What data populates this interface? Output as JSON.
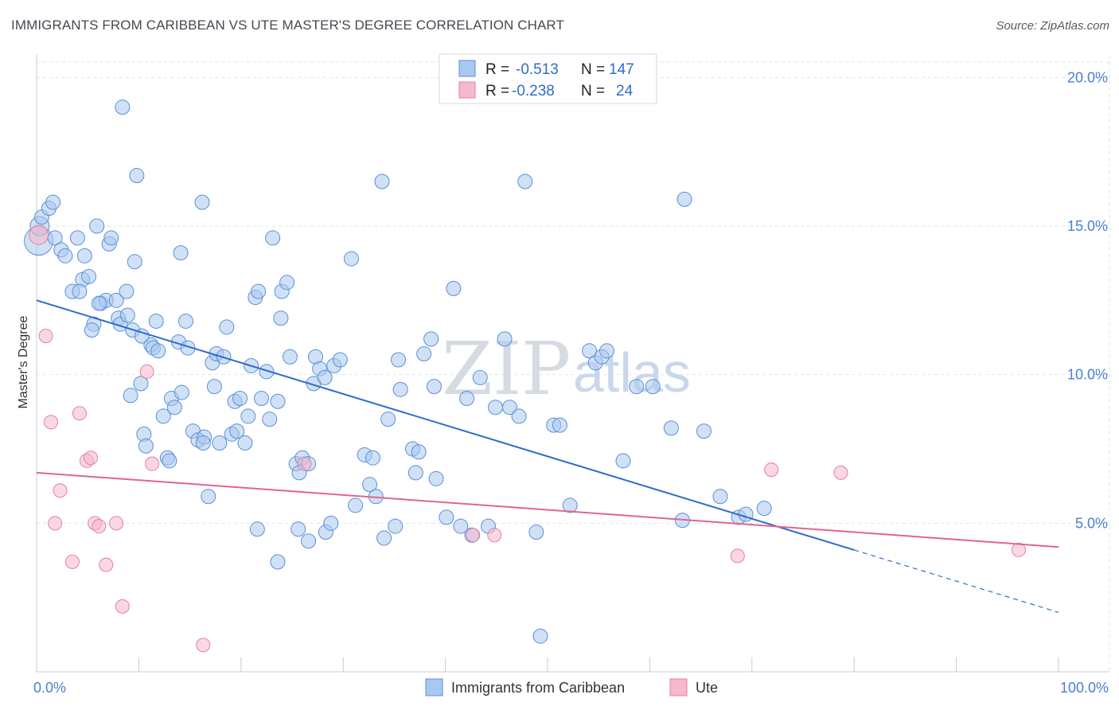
{
  "title": "IMMIGRANTS FROM CARIBBEAN VS UTE MASTER'S DEGREE CORRELATION CHART",
  "source": "Source: ZipAtlas.com",
  "watermark": {
    "zip": "ZIP",
    "atlas": "atlas"
  },
  "legend": {
    "row1": {
      "r_label": "R =",
      "r_value": "-0.513",
      "n_label": "N =",
      "n_value": "147"
    },
    "row2": {
      "r_label": "R =",
      "r_value": "-0.238",
      "n_label": "N =",
      "n_value": "24"
    }
  },
  "colors": {
    "blue_fill": "#a9c8ef",
    "blue_stroke": "#5a8fd8",
    "blue_line": "#2f6cc9",
    "pink_fill": "#f6b8cb",
    "pink_stroke": "#e57fa1",
    "pink_line": "#e0658f",
    "grid": "#dfe3ea",
    "tick_text": "#4a7fd1"
  },
  "chart_data": {
    "type": "scatter",
    "xlabel": "",
    "ylabel": "Master's Degree",
    "xlim": [
      0,
      100
    ],
    "ylim": [
      0,
      21
    ],
    "x_tick_labels": [
      {
        "value": 0,
        "label": "0.0%"
      },
      {
        "value": 100,
        "label": "100.0%"
      }
    ],
    "y_ticks": [
      {
        "value": 5,
        "label": "5.0%"
      },
      {
        "value": 10,
        "label": "10.0%"
      },
      {
        "value": 15,
        "label": "15.0%"
      },
      {
        "value": 20,
        "label": "20.0%"
      }
    ],
    "x_minor_ticks": [
      0,
      10,
      20,
      30,
      40,
      50,
      60,
      70,
      80,
      90,
      100
    ],
    "grid": true,
    "legend_position": "top-center",
    "series": [
      {
        "name": "Immigrants from Caribbean",
        "color": "#a9c8ef",
        "points": [
          [
            0.2,
            14.5
          ],
          [
            0.3,
            15
          ],
          [
            0.5,
            15.3
          ],
          [
            1.2,
            15.6
          ],
          [
            1.6,
            15.8
          ],
          [
            1.8,
            14.6
          ],
          [
            2.4,
            14.2
          ],
          [
            2.8,
            14
          ],
          [
            3.5,
            12.8
          ],
          [
            4,
            14.6
          ],
          [
            4.5,
            13.2
          ],
          [
            4.2,
            12.8
          ],
          [
            4.7,
            14
          ],
          [
            5.1,
            13.3
          ],
          [
            5.6,
            11.7
          ],
          [
            5.4,
            11.5
          ],
          [
            5.9,
            15
          ],
          [
            6.3,
            12.4
          ],
          [
            6.8,
            12.5
          ],
          [
            7.1,
            14.4
          ],
          [
            7.3,
            14.6
          ],
          [
            7.8,
            12.5
          ],
          [
            8,
            11.9
          ],
          [
            8.2,
            11.7
          ],
          [
            8.9,
            12
          ],
          [
            9.4,
            11.5
          ],
          [
            8.8,
            12.8
          ],
          [
            8.4,
            19
          ],
          [
            9.8,
            16.7
          ],
          [
            9.6,
            13.8
          ],
          [
            10.2,
            9.7
          ],
          [
            9.2,
            9.3
          ],
          [
            10.5,
            8
          ],
          [
            10.7,
            7.6
          ],
          [
            11.2,
            11
          ],
          [
            11.7,
            11.8
          ],
          [
            11.4,
            10.9
          ],
          [
            11.9,
            10.8
          ],
          [
            12.4,
            8.6
          ],
          [
            12.8,
            7.2
          ],
          [
            13,
            7.1
          ],
          [
            13.2,
            9.2
          ],
          [
            13.5,
            8.9
          ],
          [
            13.9,
            11.1
          ],
          [
            14.2,
            9.4
          ],
          [
            14.6,
            11.8
          ],
          [
            14.8,
            10.9
          ],
          [
            14.1,
            14.1
          ],
          [
            15.3,
            8.1
          ],
          [
            15.8,
            7.8
          ],
          [
            16.4,
            7.9
          ],
          [
            16.2,
            15.8
          ],
          [
            16.8,
            5.9
          ],
          [
            17.2,
            10.4
          ],
          [
            17.6,
            10.7
          ],
          [
            17.4,
            9.6
          ],
          [
            17.9,
            7.7
          ],
          [
            18.3,
            10.6
          ],
          [
            18.6,
            11.6
          ],
          [
            19.1,
            8
          ],
          [
            19.4,
            9.1
          ],
          [
            19.6,
            8.1
          ],
          [
            19.9,
            9.2
          ],
          [
            20.4,
            7.7
          ],
          [
            20.7,
            8.6
          ],
          [
            21,
            10.3
          ],
          [
            21.4,
            12.6
          ],
          [
            21.7,
            12.8
          ],
          [
            22,
            9.2
          ],
          [
            22.8,
            8.5
          ],
          [
            22.5,
            10.1
          ],
          [
            23.1,
            14.6
          ],
          [
            23.6,
            9.1
          ],
          [
            23.9,
            11.9
          ],
          [
            24,
            12.8
          ],
          [
            24.5,
            13.1
          ],
          [
            24.8,
            10.6
          ],
          [
            25.4,
            7
          ],
          [
            25.7,
            6.7
          ],
          [
            26,
            7.2
          ],
          [
            26.6,
            7
          ],
          [
            27.1,
            9.7
          ],
          [
            27.3,
            10.6
          ],
          [
            27.7,
            10.2
          ],
          [
            28.2,
            9.9
          ],
          [
            29.1,
            10.3
          ],
          [
            29.7,
            10.5
          ],
          [
            30.8,
            13.9
          ],
          [
            31.2,
            5.6
          ],
          [
            32.1,
            7.3
          ],
          [
            32.6,
            6.3
          ],
          [
            32.9,
            7.2
          ],
          [
            33.2,
            5.9
          ],
          [
            34,
            4.5
          ],
          [
            34.4,
            8.5
          ],
          [
            35.1,
            4.9
          ],
          [
            35.4,
            10.5
          ],
          [
            35.6,
            9.5
          ],
          [
            36.8,
            7.5
          ],
          [
            37.1,
            6.7
          ],
          [
            37.4,
            7.4
          ],
          [
            37.9,
            10.7
          ],
          [
            38.6,
            11.2
          ],
          [
            38.9,
            9.6
          ],
          [
            39.1,
            6.5
          ],
          [
            40.1,
            5.2
          ],
          [
            40.8,
            12.9
          ],
          [
            41.5,
            4.9
          ],
          [
            42.1,
            9.2
          ],
          [
            42.6,
            4.6
          ],
          [
            43.4,
            9.9
          ],
          [
            44.2,
            4.9
          ],
          [
            44.9,
            8.9
          ],
          [
            45.8,
            11.2
          ],
          [
            46.3,
            8.9
          ],
          [
            47.2,
            8.6
          ],
          [
            47.8,
            16.5
          ],
          [
            48.9,
            4.7
          ],
          [
            49.3,
            1.2
          ],
          [
            50.6,
            8.3
          ],
          [
            51.2,
            8.3
          ],
          [
            52.2,
            5.6
          ],
          [
            54.1,
            10.8
          ],
          [
            54.7,
            10.4
          ],
          [
            55.3,
            10.6
          ],
          [
            55.8,
            10.8
          ],
          [
            57.4,
            7.1
          ],
          [
            58.7,
            9.6
          ],
          [
            60.3,
            9.6
          ],
          [
            62.1,
            8.2
          ],
          [
            63.2,
            5.1
          ],
          [
            63.4,
            15.9
          ],
          [
            65.3,
            8.1
          ],
          [
            66.9,
            5.9
          ],
          [
            68.7,
            5.2
          ],
          [
            69.4,
            5.3
          ],
          [
            71.2,
            5.5
          ],
          [
            33.8,
            16.5
          ],
          [
            23.6,
            3.7
          ],
          [
            25.6,
            4.8
          ],
          [
            26.6,
            4.4
          ],
          [
            28.3,
            4.7
          ],
          [
            28.8,
            5
          ],
          [
            21.6,
            4.8
          ],
          [
            6.1,
            12.4
          ],
          [
            10.3,
            11.3
          ],
          [
            16.3,
            7.7
          ]
        ]
      },
      {
        "name": "Ute",
        "color": "#f6b8cb",
        "points": [
          [
            0.2,
            14.7
          ],
          [
            0.9,
            11.3
          ],
          [
            1.4,
            8.4
          ],
          [
            1.8,
            5
          ],
          [
            2.3,
            6.1
          ],
          [
            3.5,
            3.7
          ],
          [
            4.2,
            8.7
          ],
          [
            4.9,
            7.1
          ],
          [
            5.3,
            7.2
          ],
          [
            5.7,
            5
          ],
          [
            6.1,
            4.9
          ],
          [
            6.8,
            3.6
          ],
          [
            7.8,
            5
          ],
          [
            8.4,
            2.2
          ],
          [
            10.8,
            10.1
          ],
          [
            11.3,
            7
          ],
          [
            16.3,
            0.9
          ],
          [
            26.2,
            7
          ],
          [
            42.7,
            4.6
          ],
          [
            44.8,
            4.6
          ],
          [
            68.6,
            3.9
          ],
          [
            71.9,
            6.8
          ],
          [
            78.7,
            6.7
          ],
          [
            96.1,
            4.1
          ]
        ]
      }
    ],
    "trendlines": [
      {
        "series": "Immigrants from Caribbean",
        "x": [
          0,
          80
        ],
        "y": [
          12.5,
          4.1
        ],
        "dashed_extension_to": [
          100,
          2.0
        ]
      },
      {
        "series": "Ute",
        "x": [
          0,
          100
        ],
        "y": [
          6.7,
          4.2
        ]
      }
    ]
  }
}
